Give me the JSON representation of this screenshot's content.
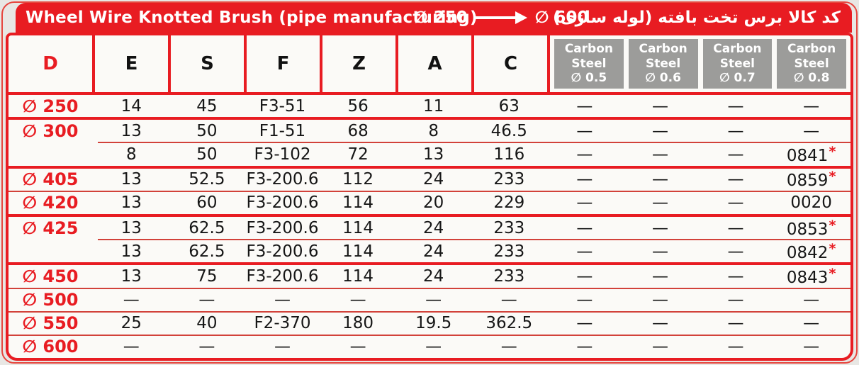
{
  "title_bar": {
    "title": "Wheel Wire Knotted Brush (pipe manufacturing)",
    "range_from": "∅ 250",
    "range_to": "∅ 600",
    "persian_title": "کد کالا برس تخت بافته (لوله سازی)"
  },
  "colors": {
    "accent_red": "#e81c22",
    "thin_line_red": "#d2423a",
    "carbon_header_gray": "#9c9c9a",
    "cell_background": "#fbfaf7",
    "page_background": "#e8e7e4"
  },
  "table": {
    "columns": [
      "D",
      "E",
      "S",
      "F",
      "Z",
      "A",
      "C"
    ],
    "carbon_steel_columns": [
      {
        "material_lines": [
          "Carbon",
          "Steel"
        ],
        "wire_diameter": "∅ 0.5"
      },
      {
        "material_lines": [
          "Carbon",
          "Steel"
        ],
        "wire_diameter": "∅ 0.6"
      },
      {
        "material_lines": [
          "Carbon",
          "Steel"
        ],
        "wire_diameter": "∅ 0.7"
      },
      {
        "material_lines": [
          "Carbon",
          "Steel"
        ],
        "wire_diameter": "∅ 0.8"
      }
    ],
    "rows": [
      {
        "d": "∅ 250",
        "values": [
          "14",
          "45",
          "F3-51",
          "56",
          "11",
          "63"
        ],
        "codes": [
          "—",
          "—",
          "—",
          "—"
        ],
        "sep": "none"
      },
      {
        "d": "∅ 300",
        "values": [
          "13",
          "50",
          "F1-51",
          "68",
          "8",
          "46.5"
        ],
        "codes": [
          "—",
          "—",
          "—",
          "—"
        ],
        "sep": "thick"
      },
      {
        "d": "",
        "values": [
          "8",
          "50",
          "F3-102",
          "72",
          "13",
          "116"
        ],
        "codes": [
          "—",
          "—",
          "—",
          "0841*"
        ],
        "sep": "partial"
      },
      {
        "d": "∅ 405",
        "values": [
          "13",
          "52.5",
          "F3-200.6",
          "112",
          "24",
          "233"
        ],
        "codes": [
          "—",
          "—",
          "—",
          "0859*"
        ],
        "sep": "thick"
      },
      {
        "d": "∅ 420",
        "values": [
          "13",
          "60",
          "F3-200.6",
          "114",
          "20",
          "229"
        ],
        "codes": [
          "—",
          "—",
          "—",
          "0020"
        ],
        "sep": "thin"
      },
      {
        "d": "∅ 425",
        "values": [
          "13",
          "62.5",
          "F3-200.6",
          "114",
          "24",
          "233"
        ],
        "codes": [
          "—",
          "—",
          "—",
          "0853*"
        ],
        "sep": "thick"
      },
      {
        "d": "",
        "values": [
          "13",
          "62.5",
          "F3-200.6",
          "114",
          "24",
          "233"
        ],
        "codes": [
          "—",
          "—",
          "—",
          "0842*"
        ],
        "sep": "partial"
      },
      {
        "d": "∅ 450",
        "values": [
          "13",
          "75",
          "F3-200.6",
          "114",
          "24",
          "233"
        ],
        "codes": [
          "—",
          "—",
          "—",
          "0843*"
        ],
        "sep": "thick"
      },
      {
        "d": "∅ 500",
        "values": [
          "—",
          "—",
          "—",
          "—",
          "—",
          "—"
        ],
        "codes": [
          "—",
          "—",
          "—",
          "—"
        ],
        "sep": "thin"
      },
      {
        "d": "∅ 550",
        "values": [
          "25",
          "40",
          "F2-370",
          "180",
          "19.5",
          "362.5"
        ],
        "codes": [
          "—",
          "—",
          "—",
          "—"
        ],
        "sep": "thin"
      },
      {
        "d": "∅ 600",
        "values": [
          "—",
          "—",
          "—",
          "—",
          "—",
          "—"
        ],
        "codes": [
          "—",
          "—",
          "—",
          "—"
        ],
        "sep": "thin"
      }
    ]
  }
}
